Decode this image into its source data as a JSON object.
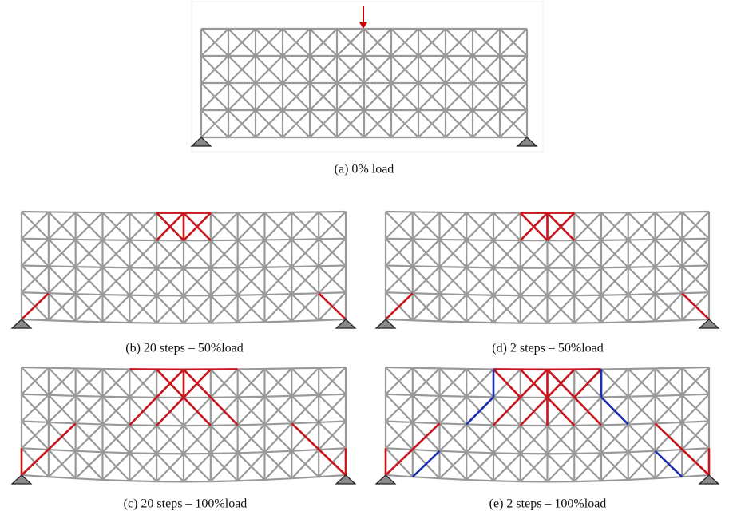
{
  "panels": [
    {
      "caption": "(a) 0% load"
    },
    {
      "caption": "(b) 20 steps – 50%load"
    },
    {
      "caption": "(d) 2 steps – 50%load"
    },
    {
      "caption": "(c) 20 steps – 100%load"
    },
    {
      "caption": "(e) 2 steps – 100%load"
    }
  ]
}
